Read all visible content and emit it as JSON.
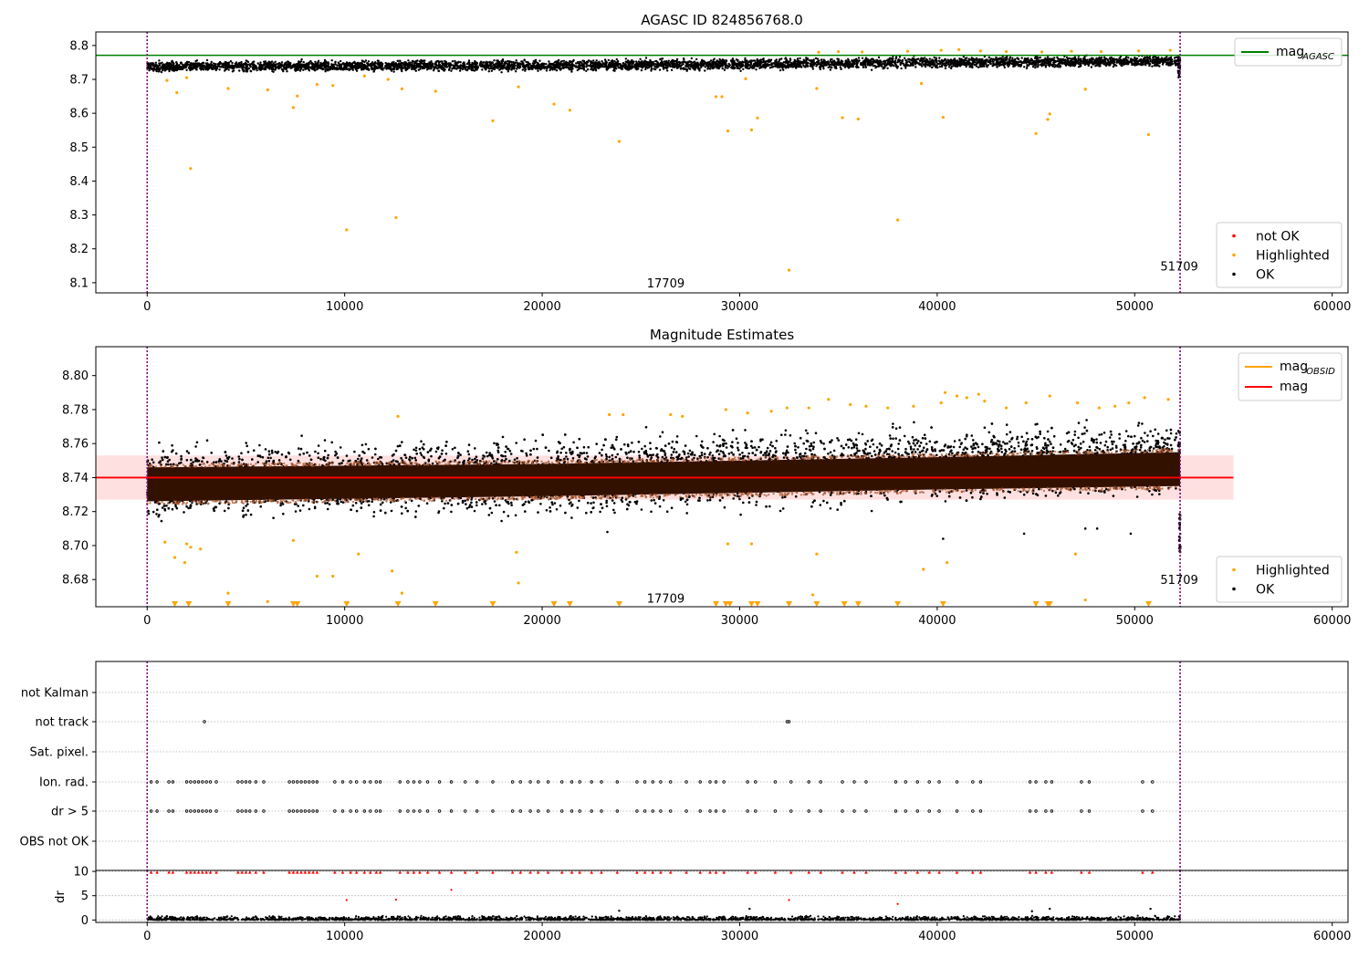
{
  "figure": {
    "title": "AGASC ID 824856768.0"
  },
  "colors": {
    "ok": "#000000",
    "highlighted": "#ffa500",
    "not_ok": "#ff0000",
    "mag_agasc": "#008000",
    "mag_obsid": "#ffa500",
    "mag": "#ff0000",
    "band": "#ffcccc",
    "dense_band": "#331100",
    "obs_boundary": "#800080"
  },
  "chart_data": [
    {
      "type": "scatter",
      "title": "AGASC ID 824856768.0",
      "xlim": [
        -2600,
        60800
      ],
      "ylim": [
        8.07,
        8.84
      ],
      "xticks": [
        0,
        10000,
        20000,
        30000,
        40000,
        50000,
        60000
      ],
      "yticks": [
        8.1,
        8.2,
        8.3,
        8.4,
        8.5,
        8.6,
        8.7,
        8.8
      ],
      "ytick_decimals": 1,
      "vlines": [
        0,
        52300
      ],
      "annotations": [
        {
          "text": "17709",
          "x": 25300,
          "y": 8.1
        },
        {
          "text": "51709",
          "x": 51300,
          "y": 8.15
        }
      ],
      "hlines": [
        {
          "name": "mag_AGASC",
          "y": 8.771,
          "x0": -2600,
          "x1": 60800,
          "color": "#008000"
        }
      ],
      "legend_lines": [
        {
          "label": "mag",
          "sub": "AGASC",
          "color": "#008000"
        }
      ],
      "legend_points": [
        {
          "label": "not OK",
          "color": "#ff0000"
        },
        {
          "label": "Highlighted",
          "color": "#ffa500"
        },
        {
          "label": "OK",
          "color": "#000000"
        }
      ],
      "ok_band": {
        "x0": 0,
        "x1": 52300,
        "lower": [
          [
            0,
            8.718
          ],
          [
            10000,
            8.718
          ],
          [
            20000,
            8.72
          ],
          [
            30000,
            8.723
          ],
          [
            40000,
            8.728
          ],
          [
            52300,
            8.733
          ]
        ],
        "upper": [
          [
            0,
            8.758
          ],
          [
            10000,
            8.76
          ],
          [
            20000,
            8.762
          ],
          [
            30000,
            8.766
          ],
          [
            40000,
            8.772
          ],
          [
            52300,
            8.774
          ]
        ]
      },
      "highlighted_points": [
        [
          1000,
          8.697
        ],
        [
          1500,
          8.661
        ],
        [
          2000,
          8.705
        ],
        [
          2200,
          8.437
        ],
        [
          4100,
          8.673
        ],
        [
          6100,
          8.669
        ],
        [
          7400,
          8.617
        ],
        [
          7600,
          8.651
        ],
        [
          8600,
          8.685
        ],
        [
          9400,
          8.682
        ],
        [
          10100,
          8.256
        ],
        [
          11000,
          8.71
        ],
        [
          12200,
          8.7
        ],
        [
          12600,
          8.292
        ],
        [
          12900,
          8.672
        ],
        [
          14600,
          8.665
        ],
        [
          17500,
          8.578
        ],
        [
          18800,
          8.678
        ],
        [
          20600,
          8.627
        ],
        [
          21400,
          8.609
        ],
        [
          23900,
          8.517
        ],
        [
          28800,
          8.649
        ],
        [
          29100,
          8.649
        ],
        [
          29400,
          8.548
        ],
        [
          30300,
          8.702
        ],
        [
          30600,
          8.551
        ],
        [
          30900,
          8.586
        ],
        [
          32500,
          8.137
        ],
        [
          33900,
          8.673
        ],
        [
          35200,
          8.587
        ],
        [
          36000,
          8.583
        ],
        [
          38000,
          8.285
        ],
        [
          39200,
          8.688
        ],
        [
          40300,
          8.588
        ],
        [
          45000,
          8.54
        ],
        [
          45600,
          8.582
        ],
        [
          45700,
          8.598
        ],
        [
          47500,
          8.671
        ],
        [
          50700,
          8.537
        ],
        [
          34000,
          8.78
        ],
        [
          35000,
          8.782
        ],
        [
          36200,
          8.781
        ],
        [
          38500,
          8.783
        ],
        [
          40200,
          8.786
        ],
        [
          41100,
          8.788
        ],
        [
          42200,
          8.784
        ],
        [
          43500,
          8.782
        ],
        [
          45300,
          8.781
        ],
        [
          46800,
          8.783
        ],
        [
          48300,
          8.782
        ],
        [
          50200,
          8.784
        ],
        [
          51800,
          8.786
        ]
      ]
    },
    {
      "type": "scatter",
      "title": "Magnitude Estimates",
      "xlim": [
        -2600,
        60800
      ],
      "ylim": [
        8.664,
        8.817
      ],
      "xticks": [
        0,
        10000,
        20000,
        30000,
        40000,
        50000,
        60000
      ],
      "yticks": [
        8.68,
        8.7,
        8.72,
        8.74,
        8.76,
        8.78,
        8.8
      ],
      "ytick_decimals": 2,
      "vlines": [
        0,
        52300
      ],
      "annotations": [
        {
          "text": "17709",
          "x": 25300,
          "y": 8.669
        },
        {
          "text": "51709",
          "x": 51300,
          "y": 8.68
        }
      ],
      "hlines": [
        {
          "name": "mag",
          "y": 8.74,
          "x0": -2600,
          "x1": 55000,
          "color": "#ff0000"
        }
      ],
      "shaded_band": {
        "y0": 8.727,
        "y1": 8.753,
        "x0": -2600,
        "x1": 55000
      },
      "legend_lines": [
        {
          "label": "mag",
          "sub": "OBSID",
          "color": "#ffa500"
        },
        {
          "label": "mag",
          "sub": "",
          "color": "#ff0000"
        }
      ],
      "legend_points": [
        {
          "label": "Highlighted",
          "color": "#ffa500"
        },
        {
          "label": "OK",
          "color": "#000000"
        }
      ],
      "dense_band": {
        "lower": [
          [
            0,
            8.726
          ],
          [
            20000,
            8.729
          ],
          [
            40000,
            8.733
          ],
          [
            52300,
            8.735
          ]
        ],
        "upper": [
          [
            0,
            8.746
          ],
          [
            20000,
            8.748
          ],
          [
            40000,
            8.752
          ],
          [
            52300,
            8.755
          ]
        ]
      },
      "ok_band": {
        "x0": 0,
        "x1": 52300,
        "lower": [
          [
            0,
            8.71
          ],
          [
            10000,
            8.711
          ],
          [
            20000,
            8.713
          ],
          [
            30000,
            8.716
          ],
          [
            40000,
            8.72
          ],
          [
            52300,
            8.722
          ]
        ],
        "upper": [
          [
            0,
            8.764
          ],
          [
            10000,
            8.766
          ],
          [
            20000,
            8.768
          ],
          [
            30000,
            8.773
          ],
          [
            40000,
            8.776
          ],
          [
            52300,
            8.778
          ]
        ]
      },
      "highlighted_points": [
        [
          900,
          8.702
        ],
        [
          1400,
          8.693
        ],
        [
          1900,
          8.69
        ],
        [
          2000,
          8.701
        ],
        [
          2200,
          8.699
        ],
        [
          2700,
          8.698
        ],
        [
          4100,
          8.672
        ],
        [
          6100,
          8.667
        ],
        [
          7400,
          8.703
        ],
        [
          8600,
          8.682
        ],
        [
          9400,
          8.682
        ],
        [
          10700,
          8.695
        ],
        [
          12400,
          8.685
        ],
        [
          12900,
          8.672
        ],
        [
          18800,
          8.678
        ],
        [
          18700,
          8.696
        ],
        [
          29400,
          8.701
        ],
        [
          30600,
          8.701
        ],
        [
          33900,
          8.695
        ],
        [
          33700,
          8.671
        ],
        [
          39300,
          8.686
        ],
        [
          40500,
          8.69
        ],
        [
          47000,
          8.695
        ],
        [
          47500,
          8.668
        ],
        [
          12700,
          8.776
        ],
        [
          23400,
          8.777
        ],
        [
          24100,
          8.777
        ],
        [
          26500,
          8.777
        ],
        [
          27100,
          8.776
        ],
        [
          29300,
          8.78
        ],
        [
          30400,
          8.778
        ],
        [
          31600,
          8.779
        ],
        [
          32400,
          8.781
        ],
        [
          33500,
          8.781
        ],
        [
          34500,
          8.786
        ],
        [
          35600,
          8.783
        ],
        [
          36400,
          8.782
        ],
        [
          37500,
          8.781
        ],
        [
          38800,
          8.782
        ],
        [
          40200,
          8.784
        ],
        [
          40400,
          8.79
        ],
        [
          41000,
          8.788
        ],
        [
          41500,
          8.787
        ],
        [
          42100,
          8.789
        ],
        [
          42400,
          8.785
        ],
        [
          43500,
          8.781
        ],
        [
          44500,
          8.784
        ],
        [
          45700,
          8.788
        ],
        [
          47100,
          8.784
        ],
        [
          48200,
          8.781
        ],
        [
          49000,
          8.782
        ],
        [
          49700,
          8.784
        ],
        [
          50500,
          8.787
        ],
        [
          51700,
          8.786
        ]
      ],
      "bottom_markers": [
        1400,
        2100,
        4100,
        7400,
        7600,
        10100,
        12700,
        14600,
        17500,
        20600,
        21400,
        23900,
        28800,
        29300,
        29500,
        30600,
        30900,
        32500,
        33900,
        35300,
        36000,
        38000,
        40300,
        45000,
        45600,
        45700,
        50700
      ]
    },
    {
      "type": "scatter",
      "title": "",
      "xlim": [
        -2600,
        60800
      ],
      "categories": [
        "not Kalman",
        "not track",
        "Sat. pixel.",
        "Ion. rad.",
        "dr > 5",
        "OBS not OK"
      ],
      "flag_points": {
        "not track": [
          2900,
          32400,
          32500
        ],
        "Ion. rad.": [
          200,
          500,
          1100,
          1300,
          2000,
          2200,
          2400,
          2600,
          2800,
          3000,
          3200,
          3500,
          4600,
          4800,
          5000,
          5200,
          5500,
          5900,
          7200,
          7400,
          7600,
          7800,
          8000,
          8200,
          8400,
          8600,
          9500,
          9900,
          10300,
          10600,
          11000,
          11300,
          11600,
          11800,
          12800,
          13200,
          13500,
          13800,
          14200,
          14800,
          15400,
          16100,
          16700,
          17500,
          18500,
          18900,
          19400,
          19800,
          20300,
          21000,
          21500,
          21900,
          22500,
          23000,
          23800,
          24800,
          25200,
          25600,
          26000,
          26500,
          27300,
          28000,
          28500,
          28800,
          29200,
          30400,
          30800,
          31800,
          32600,
          33500,
          34100,
          35200,
          35800,
          36400,
          37900,
          38400,
          39000,
          39600,
          40100,
          41000,
          41800,
          42200,
          44700,
          45000,
          45500,
          45800,
          47300,
          47700,
          50400,
          50900
        ],
        "dr > 5": [
          200,
          500,
          1100,
          1300,
          2000,
          2200,
          2400,
          2600,
          2800,
          3000,
          3200,
          3500,
          4600,
          4800,
          5000,
          5200,
          5500,
          5900,
          7200,
          7400,
          7600,
          7800,
          8000,
          8200,
          8400,
          8600,
          9500,
          9900,
          10300,
          10600,
          11000,
          11300,
          11600,
          11800,
          12800,
          13200,
          13500,
          13800,
          14200,
          14800,
          15400,
          16100,
          16700,
          17500,
          18500,
          18900,
          19400,
          19800,
          20300,
          21000,
          21500,
          21900,
          22500,
          23000,
          23800,
          24800,
          25200,
          25600,
          26000,
          26500,
          27300,
          28000,
          28500,
          28800,
          29200,
          30400,
          30800,
          31800,
          32600,
          33500,
          34100,
          35200,
          35800,
          36400,
          37900,
          38400,
          39000,
          39600,
          40100,
          41000,
          41800,
          42200,
          44700,
          45000,
          45500,
          45800,
          47300,
          47700,
          50400,
          50900
        ]
      },
      "vlines": [
        0,
        52300
      ]
    },
    {
      "type": "scatter",
      "title": "",
      "xlim": [
        -2600,
        60800
      ],
      "ylim": [
        -0.5,
        10.2
      ],
      "xticks": [
        0,
        10000,
        20000,
        30000,
        40000,
        50000,
        60000
      ],
      "yticks": [
        0,
        5,
        10
      ],
      "ylabel": "dr",
      "vlines": [
        0,
        52300
      ],
      "red_points": [
        [
          10100,
          4.1
        ],
        [
          12600,
          4.2
        ],
        [
          15400,
          6.2
        ],
        [
          32500,
          4.1
        ],
        [
          38000,
          3.3
        ]
      ],
      "black_outliers": [
        [
          23900,
          1.9
        ],
        [
          30500,
          2.3
        ],
        [
          44800,
          1.8
        ],
        [
          45700,
          2.3
        ],
        [
          50800,
          2.3
        ]
      ],
      "clipped_x": [
        200,
        500,
        1100,
        1300,
        2000,
        2200,
        2400,
        2600,
        2800,
        3000,
        3200,
        3500,
        4600,
        4800,
        5000,
        5200,
        5500,
        5900,
        7200,
        7400,
        7600,
        7800,
        8000,
        8200,
        8400,
        8600,
        9500,
        9900,
        10300,
        10600,
        11000,
        11300,
        11600,
        11800,
        12800,
        13200,
        13500,
        13800,
        14200,
        14800,
        15400,
        16100,
        16700,
        17500,
        18500,
        18900,
        19400,
        19800,
        20300,
        21000,
        21500,
        21900,
        22500,
        23000,
        23800,
        24800,
        25200,
        25600,
        26000,
        26500,
        27300,
        28000,
        28500,
        28800,
        29200,
        30400,
        30800,
        31800,
        32600,
        33500,
        34100,
        35200,
        35800,
        36400,
        37900,
        38400,
        39000,
        39600,
        40100,
        41000,
        41800,
        42200,
        44700,
        45000,
        45500,
        45800,
        47300,
        47700,
        50400,
        50900
      ]
    }
  ]
}
